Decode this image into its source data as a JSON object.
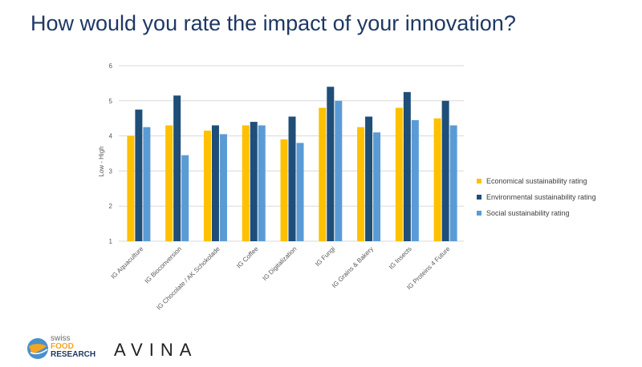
{
  "title": "How would you rate the impact of your innovation?",
  "chart_data": {
    "type": "bar",
    "title": "",
    "xlabel": "",
    "ylabel": "Low - High",
    "ylim": [
      1,
      6
    ],
    "yticks": [
      1,
      2,
      3,
      4,
      5,
      6
    ],
    "grid": true,
    "legend_position": "right",
    "categories": [
      "IG Aquaculture",
      "IG Bioconversion",
      "IG Chocolate / AK Schokolade",
      "IG Coffee",
      "IG Digitalization",
      "IG Fungi",
      "IG Grains & Bakery",
      "IG Insects",
      "IG Proteins 4 Future"
    ],
    "series": [
      {
        "name": "Economical sustainability rating",
        "color": "#ffc000",
        "values": [
          4.0,
          4.3,
          4.15,
          4.3,
          3.9,
          4.8,
          4.25,
          4.8,
          4.5
        ]
      },
      {
        "name": "Environmental sustainability rating",
        "color": "#1f4e79",
        "values": [
          4.75,
          5.15,
          4.3,
          4.4,
          4.55,
          5.4,
          4.55,
          5.25,
          5.0
        ]
      },
      {
        "name": "Social sustainability rating",
        "color": "#5b9bd5",
        "values": [
          4.25,
          3.45,
          4.05,
          4.3,
          3.8,
          5.0,
          4.1,
          4.45,
          4.3
        ]
      }
    ]
  },
  "logos": {
    "sfr_line1": "swiss",
    "sfr_line2": "FOOD",
    "sfr_line3": "RESEARCH",
    "avina": "AVINA"
  }
}
